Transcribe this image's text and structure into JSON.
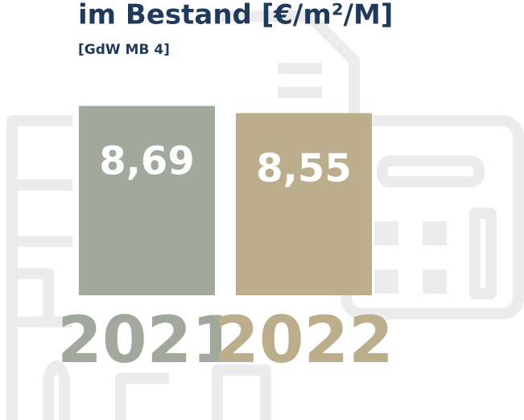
{
  "chart_data": {
    "type": "bar",
    "title": "im Bestand [€/m²/M]",
    "subtitle": "[GdW MB 4]",
    "categories": [
      "2021",
      "2022"
    ],
    "values": [
      8.69,
      8.55
    ],
    "value_labels": [
      "8,69",
      "8,55"
    ],
    "colors": [
      "#a3a89d",
      "#bcad8d"
    ],
    "ylim": [
      5,
      8.7
    ]
  }
}
